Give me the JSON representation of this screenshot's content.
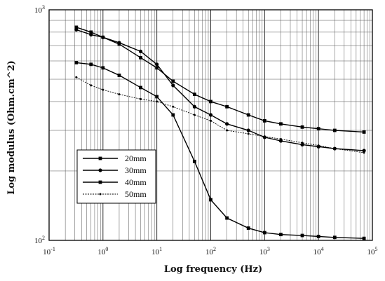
{
  "chart_data": {
    "type": "line",
    "title": "",
    "xlabel": "Log frequency (Hz)",
    "ylabel": "Log modulus (Ohm.cm^2)",
    "x_scale": "log",
    "y_scale": "log",
    "xlim": [
      0.1,
      100000
    ],
    "ylim": [
      100,
      1000
    ],
    "grid": true,
    "legend_position": "lower-left",
    "x_ticks": [
      {
        "base": "10",
        "exp": "-1",
        "value": 0.1
      },
      {
        "base": "10",
        "exp": "0",
        "value": 1
      },
      {
        "base": "10",
        "exp": "1",
        "value": 10
      },
      {
        "base": "10",
        "exp": "2",
        "value": 100
      },
      {
        "base": "10",
        "exp": "3",
        "value": 1000
      },
      {
        "base": "10",
        "exp": "4",
        "value": 10000
      },
      {
        "base": "10",
        "exp": "5",
        "value": 100000
      }
    ],
    "y_ticks": [
      {
        "base": "10",
        "exp": "2",
        "value": 100
      },
      {
        "base": "10",
        "exp": "3",
        "value": 1000
      }
    ],
    "x": [
      0.32,
      0.6,
      1,
      2,
      5,
      10,
      20,
      50,
      100,
      200,
      500,
      1000,
      2000,
      5000,
      10000,
      20000,
      70000
    ],
    "series": [
      {
        "name": "20mm",
        "marker": "square",
        "values": [
          840,
          800,
          760,
          710,
          620,
          560,
          490,
          430,
          400,
          380,
          350,
          330,
          320,
          310,
          305,
          300,
          295
        ]
      },
      {
        "name": "30mm",
        "marker": "circle",
        "values": [
          820,
          780,
          760,
          720,
          660,
          580,
          470,
          380,
          350,
          320,
          300,
          280,
          270,
          260,
          255,
          250,
          245
        ]
      },
      {
        "name": "40mm",
        "marker": "square",
        "values": [
          590,
          580,
          560,
          520,
          460,
          420,
          350,
          220,
          150,
          125,
          113,
          108,
          106,
          105,
          104,
          103,
          102
        ]
      },
      {
        "name": "50mm",
        "marker": "dot",
        "values": [
          510,
          470,
          450,
          430,
          410,
          400,
          380,
          350,
          330,
          300,
          290,
          282,
          275,
          265,
          258,
          250,
          240
        ]
      }
    ]
  }
}
